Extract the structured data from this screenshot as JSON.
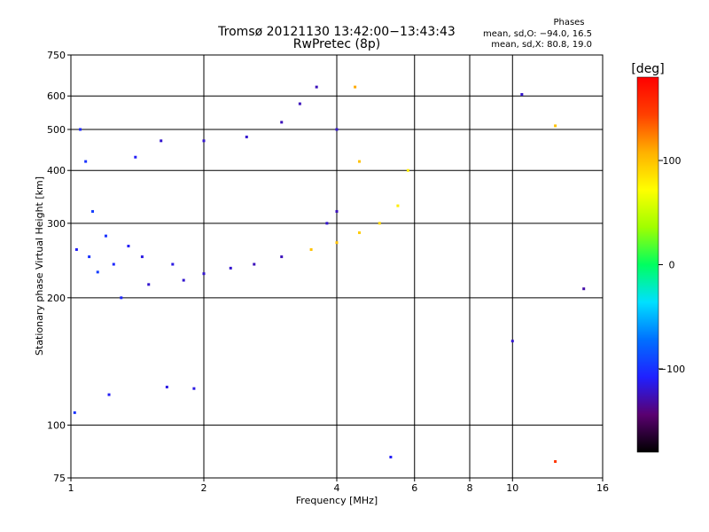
{
  "chart_data": {
    "type": "scatter",
    "title": "Tromsø 20121130 13:42:00−13:43:43",
    "subtitle": "RwPretec (8p)",
    "legend_header": "Phases",
    "legend_stats": [
      "mean, sd,O: −94.0, 16.5",
      "mean, sd,X:  80.8, 19.0"
    ],
    "xlabel": "Frequency [MHz]",
    "ylabel": "Stationary phase Virtual Height [km]",
    "x_scale": "log",
    "y_scale": "log",
    "xlim": [
      1,
      16
    ],
    "ylim": [
      75,
      750
    ],
    "x_ticks": [
      1,
      2,
      4,
      6,
      8,
      10,
      16
    ],
    "x_tick_labels": [
      "1",
      "2",
      "4",
      "6",
      "8",
      "10",
      "16"
    ],
    "y_ticks": [
      75,
      100,
      200,
      300,
      400,
      500,
      600,
      750
    ],
    "y_tick_labels": [
      "75",
      "100",
      "200",
      "300",
      "400",
      "500",
      "600",
      "750"
    ],
    "grid": true,
    "colorbar": {
      "label": "[deg]",
      "range": [
        -180,
        180
      ],
      "ticks": [
        100,
        0,
        -100
      ],
      "tick_labels": [
        "100",
        "0",
        "−100"
      ],
      "colors": [
        "#000000",
        "#5a0070",
        "#2020ff",
        "#0070ff",
        "#00e0ff",
        "#00ff60",
        "#a0ff00",
        "#ffff00",
        "#ffb000",
        "#ff4000",
        "#ff0000"
      ]
    },
    "series": [
      {
        "type": "bands",
        "points": [
          {
            "x": 1.03,
            "y": 260,
            "phase": -110
          },
          {
            "x": 1.05,
            "y": 500,
            "phase": -105
          },
          {
            "x": 1.08,
            "y": 420,
            "phase": -100
          },
          {
            "x": 1.1,
            "y": 250,
            "phase": -100
          },
          {
            "x": 1.12,
            "y": 320,
            "phase": -95
          },
          {
            "x": 1.15,
            "y": 230,
            "phase": -95
          },
          {
            "x": 1.2,
            "y": 280,
            "phase": -100
          },
          {
            "x": 1.25,
            "y": 240,
            "phase": -105
          },
          {
            "x": 1.3,
            "y": 200,
            "phase": -105
          },
          {
            "x": 1.35,
            "y": 265,
            "phase": -110
          },
          {
            "x": 1.4,
            "y": 430,
            "phase": -110
          },
          {
            "x": 1.45,
            "y": 250,
            "phase": -115
          },
          {
            "x": 1.5,
            "y": 215,
            "phase": -120
          },
          {
            "x": 1.6,
            "y": 470,
            "phase": -120
          },
          {
            "x": 1.7,
            "y": 240,
            "phase": -115
          },
          {
            "x": 1.8,
            "y": 220,
            "phase": -120
          },
          {
            "x": 2.0,
            "y": 470,
            "phase": -120
          },
          {
            "x": 2.0,
            "y": 228,
            "phase": -120
          },
          {
            "x": 2.3,
            "y": 235,
            "phase": -120
          },
          {
            "x": 2.5,
            "y": 480,
            "phase": -120
          },
          {
            "x": 2.6,
            "y": 240,
            "phase": -125
          },
          {
            "x": 3.0,
            "y": 250,
            "phase": -125
          },
          {
            "x": 3.0,
            "y": 520,
            "phase": -125
          },
          {
            "x": 3.3,
            "y": 575,
            "phase": -125
          },
          {
            "x": 3.6,
            "y": 630,
            "phase": -125
          },
          {
            "x": 3.8,
            "y": 300,
            "phase": -120
          },
          {
            "x": 4.0,
            "y": 500,
            "phase": -120
          },
          {
            "x": 4.0,
            "y": 320,
            "phase": -125
          },
          {
            "x": 3.5,
            "y": 260,
            "phase": 100
          },
          {
            "x": 4.0,
            "y": 270,
            "phase": 100
          },
          {
            "x": 4.5,
            "y": 285,
            "phase": 95
          },
          {
            "x": 5.0,
            "y": 300,
            "phase": 90
          },
          {
            "x": 5.5,
            "y": 330,
            "phase": 80
          },
          {
            "x": 5.8,
            "y": 400,
            "phase": 80
          },
          {
            "x": 4.5,
            "y": 420,
            "phase": 100
          },
          {
            "x": 4.4,
            "y": 630,
            "phase": 110
          },
          {
            "x": 1.22,
            "y": 118,
            "phase": -110
          },
          {
            "x": 1.65,
            "y": 123,
            "phase": -115
          },
          {
            "x": 1.9,
            "y": 122,
            "phase": -115
          },
          {
            "x": 1.02,
            "y": 107,
            "phase": -100
          },
          {
            "x": 10.0,
            "y": 158,
            "phase": -120
          },
          {
            "x": 14.5,
            "y": 210,
            "phase": -130
          },
          {
            "x": 10.5,
            "y": 605,
            "phase": -120
          },
          {
            "x": 5.3,
            "y": 84,
            "phase": -110
          },
          {
            "x": 12.5,
            "y": 82,
            "phase": 150
          },
          {
            "x": 12.5,
            "y": 510,
            "phase": 100
          }
        ]
      }
    ]
  }
}
